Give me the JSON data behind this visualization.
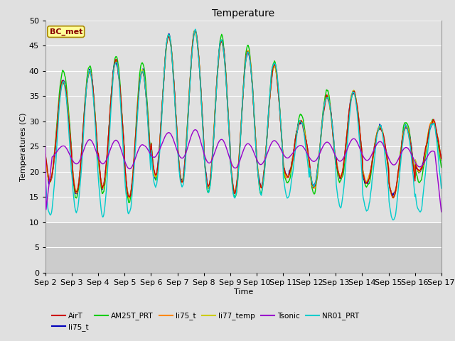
{
  "title": "Temperature",
  "xlabel": "Time",
  "ylabel": "Temperatures (C)",
  "ylim": [
    0,
    50
  ],
  "annotation": "BC_met",
  "series_colors": {
    "AirT": "#cc0000",
    "li75_t_blue": "#0000bb",
    "AM25T_PRT": "#00cc00",
    "li75_t_orange": "#ff8800",
    "li77_temp": "#cccc00",
    "Tsonic": "#9900cc",
    "NR01_PRT": "#00cccc"
  },
  "legend_entries": [
    {
      "label": "AirT",
      "color": "#cc0000"
    },
    {
      "label": "li75_t",
      "color": "#0000bb"
    },
    {
      "label": "AM25T_PRT",
      "color": "#00cc00"
    },
    {
      "label": "li75_t",
      "color": "#ff8800"
    },
    {
      "label": "li77_temp",
      "color": "#cccc00"
    },
    {
      "label": "Tsonic",
      "color": "#9900cc"
    },
    {
      "label": "NR01_PRT",
      "color": "#00cccc"
    }
  ],
  "bg_color": "#e0e0e0",
  "plot_bg_upper": "#e0e0e0",
  "plot_bg_lower": "#cccccc",
  "lower_threshold": 10,
  "grid_color": "#ffffff",
  "tick_labels": [
    "Sep 2",
    "Sep 3",
    "Sep 4",
    "Sep 5",
    "Sep 6",
    "Sep 7",
    "Sep 8",
    "Sep 9",
    "Sep 10",
    "Sep 11",
    "Sep 12",
    "Sep 13",
    "Sep 14",
    "Sep 15",
    "Sep 16",
    "Sep 17"
  ]
}
